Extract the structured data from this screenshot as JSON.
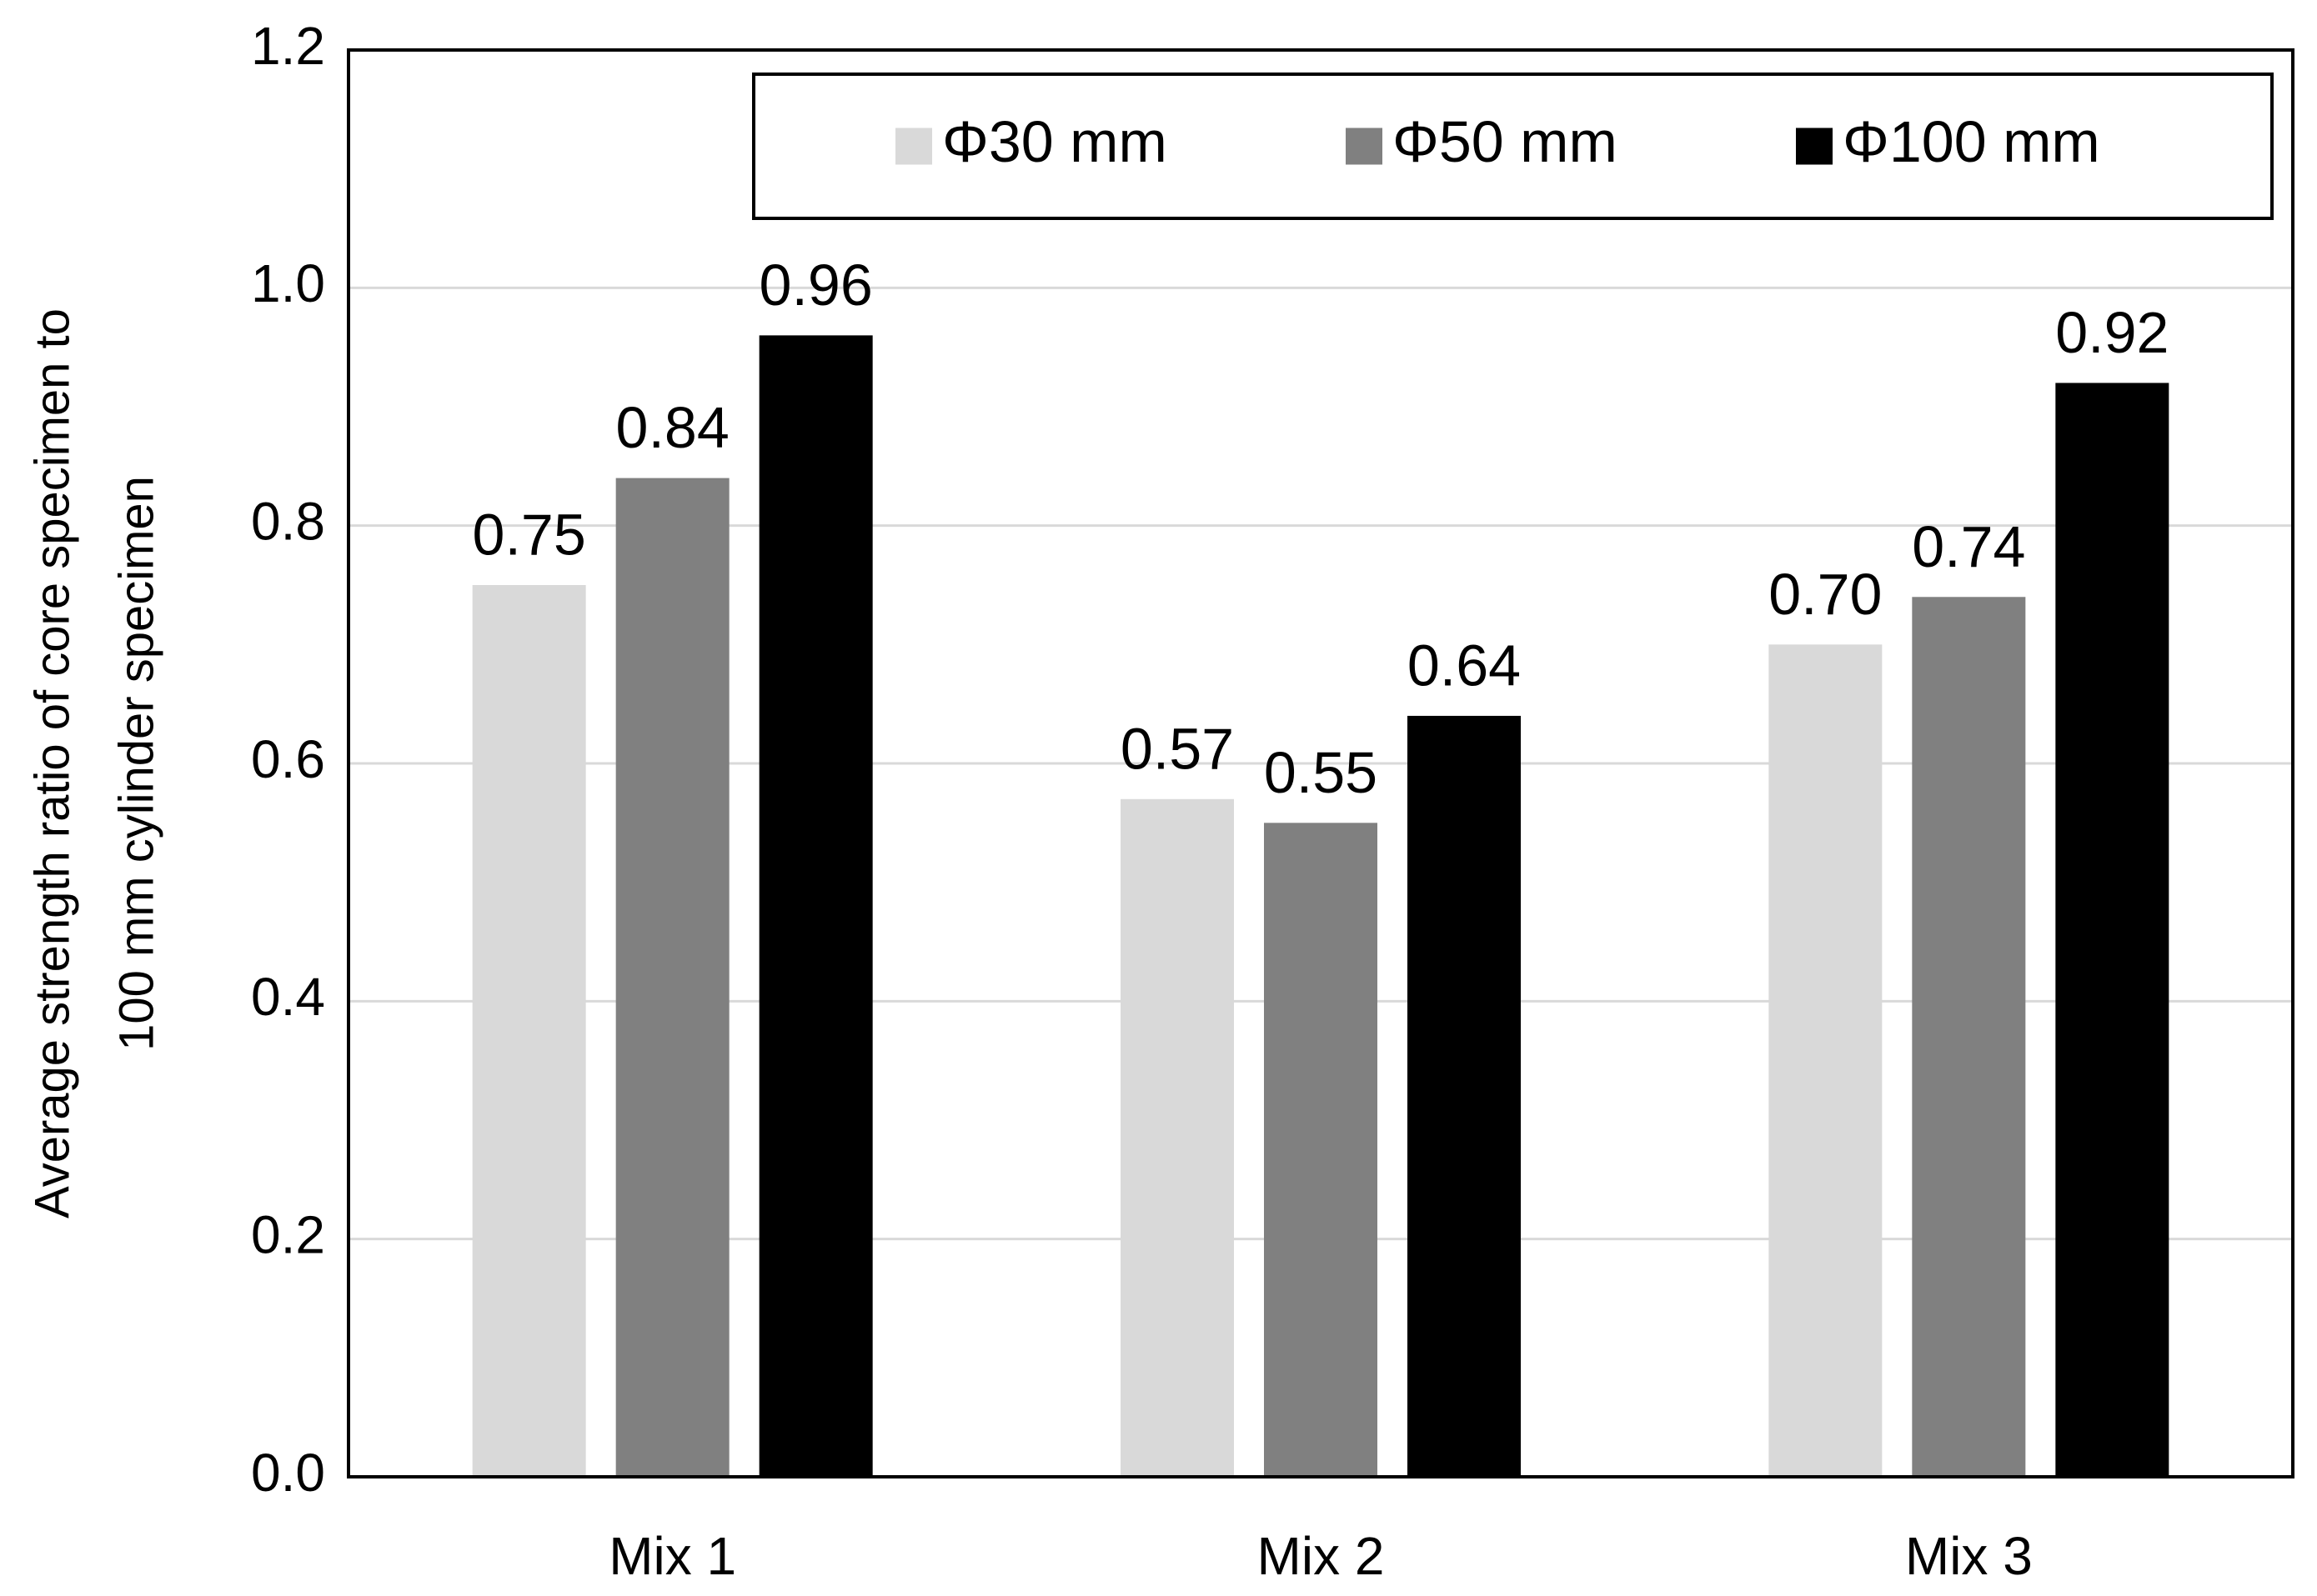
{
  "chart_data": {
    "type": "bar",
    "y_label_lines": [
      "Average  strength ratio of  core specimen to",
      "100 mm cylinder specimen"
    ],
    "categories": [
      "Mix 1",
      "Mix 2",
      "Mix 3"
    ],
    "series": [
      {
        "name": "Φ30 mm",
        "color": "#d9d9d9",
        "values": [
          0.75,
          0.57,
          0.7
        ],
        "value_labels": [
          "0.75",
          "0.57",
          "0.70"
        ]
      },
      {
        "name": "Φ50 mm",
        "color": "#808080",
        "values": [
          0.84,
          0.55,
          0.74
        ],
        "value_labels": [
          "0.84",
          "0.55",
          "0.74"
        ]
      },
      {
        "name": "Φ100 mm",
        "color": "#000000",
        "values": [
          0.96,
          0.64,
          0.92
        ],
        "value_labels": [
          "0.96",
          "0.64",
          "0.92"
        ]
      }
    ],
    "ylim": [
      0,
      1.2
    ],
    "yticks": [
      {
        "value": 0,
        "label": "0.0"
      },
      0.2,
      0.4,
      0.6,
      0.8,
      {
        "value": 1,
        "label": "1.0"
      },
      1.2
    ],
    "grid": true,
    "legend": "top-right"
  }
}
